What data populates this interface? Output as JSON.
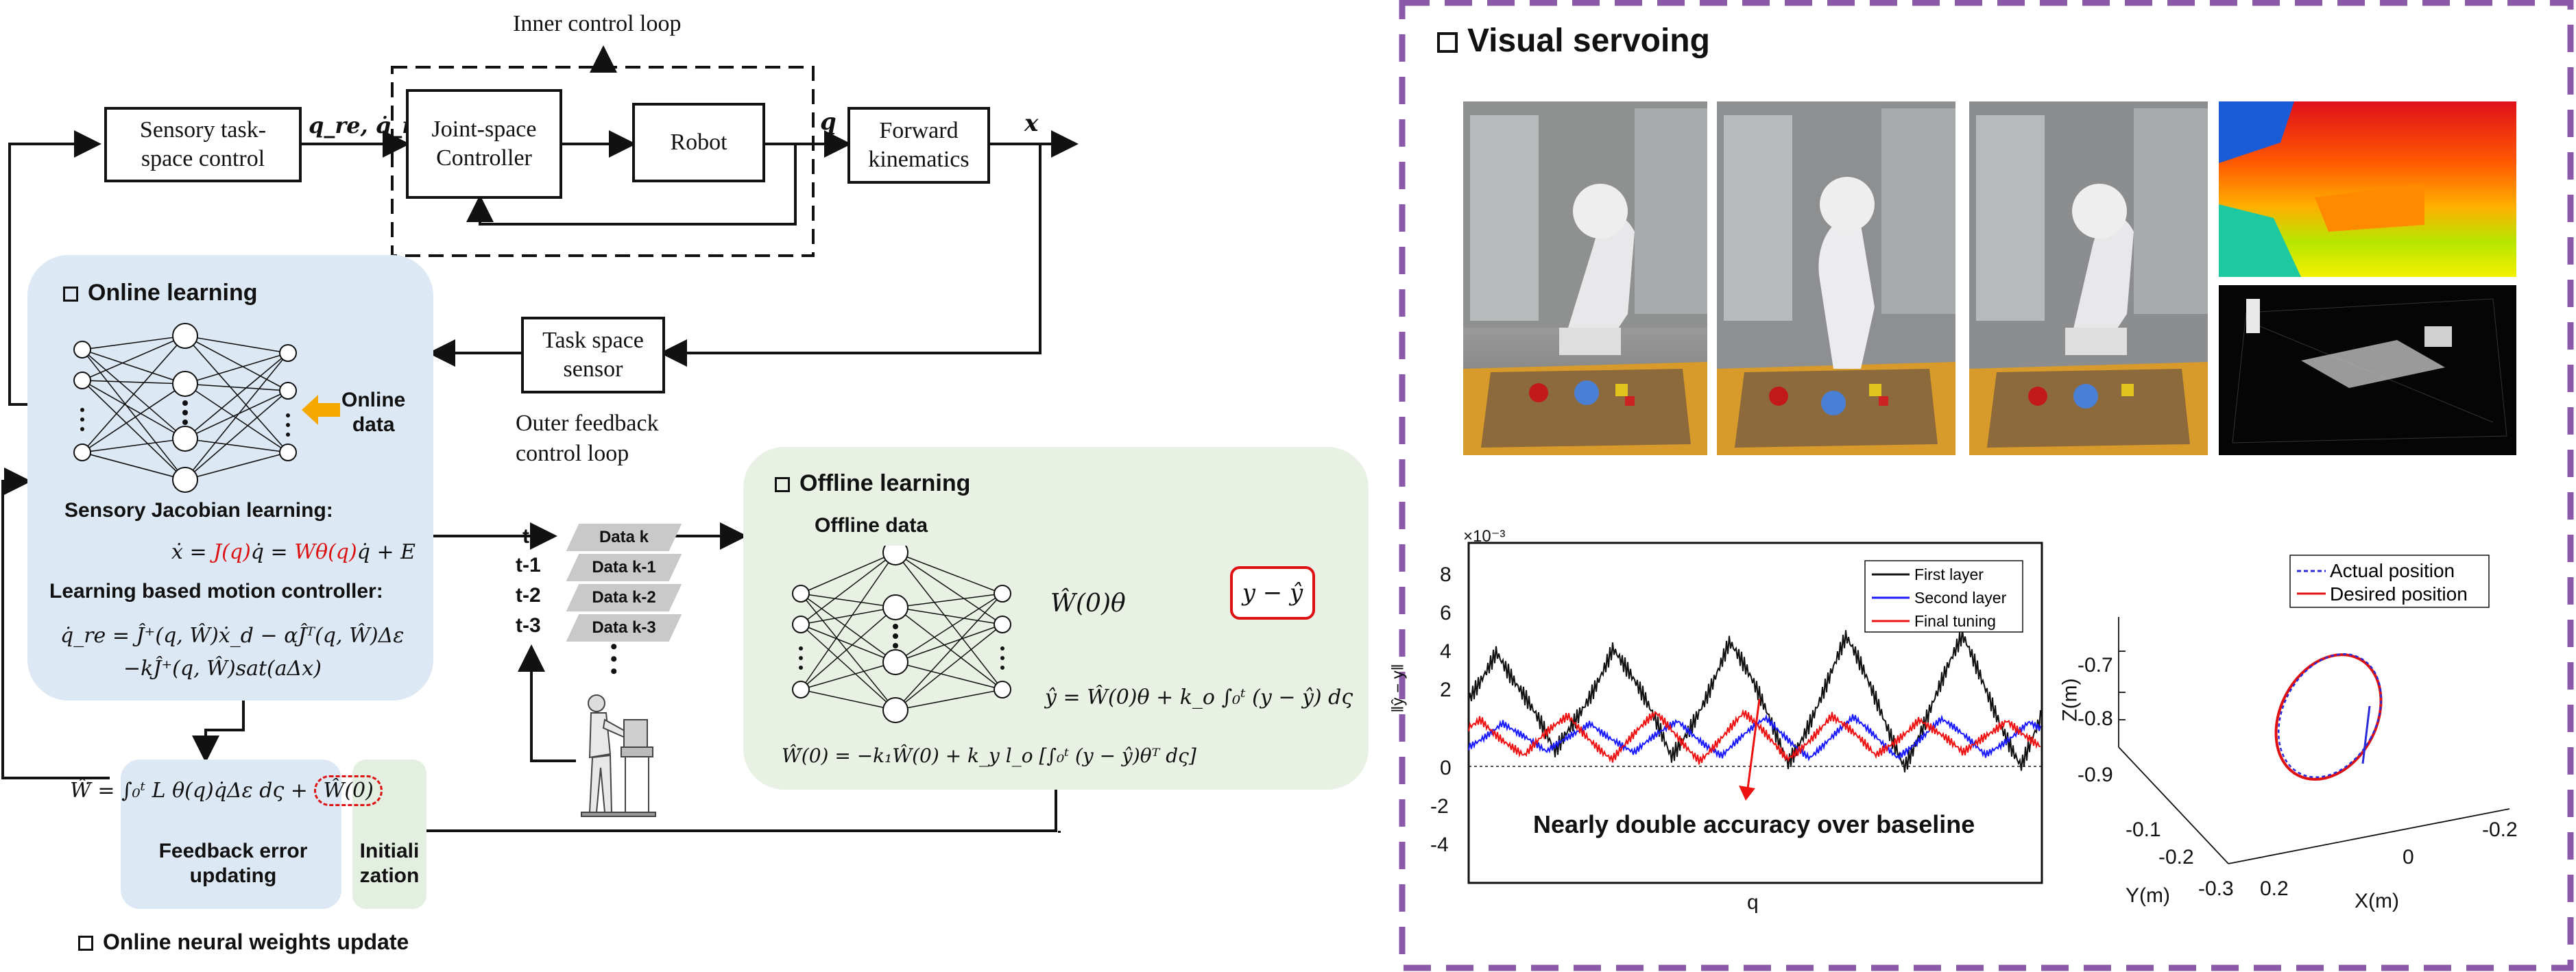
{
  "colors": {
    "online_panel": "#dde8f5",
    "offline_panel": "#e8f1e3",
    "init_panel": "#e3efe0",
    "highlight_red": "#dd1111",
    "arrow_orange": "#f5a800",
    "frame_purple": "#8a5aa8"
  },
  "control": {
    "inner_loop_label": "Inner control loop",
    "sensory_box": "Sensory task-\nspace control",
    "q_re_label": "q_re, q̇_re",
    "joint_box": "Joint-space\nController",
    "robot_box": "Robot",
    "q_label": "q",
    "fk_box": "Forward\nkinematics",
    "x_label": "x",
    "task_sensor_box": "Task space\nsensor",
    "outer_loop_label": "Outer feedback\ncontrol loop"
  },
  "online": {
    "title": "Online learning",
    "online_data_label": "Online\ndata",
    "jacobian_title": "Sensory Jacobian learning:",
    "jacobian_eq": {
      "lhs": "ẋ = ",
      "j": "J(q)",
      "mid": "q̇ = ",
      "w": "Wθ(q)",
      "rhs": "q̇ + E"
    },
    "motion_title": "Learning based motion controller:",
    "motion_eq_1": "q̇_re = Ĵ⁺(q, Ŵ)ẋ_d − αĴᵀ(q, Ŵ)Δε",
    "motion_eq_2": "−kĴ⁺(q, Ŵ)sat(aΔx)"
  },
  "update": {
    "eq_left": "Ŵ̇ = ∫₀ᵗ L θ(q)q̇Δε dς + ",
    "eq_right": "Ŵ(0)",
    "feedback_label": "Feedback error\nupdating",
    "init_label": "Initiali\nzation",
    "footer_title": "Online neural weights update"
  },
  "data_stack": {
    "times": [
      "t",
      "t-1",
      "t-2",
      "t-3"
    ],
    "items": [
      "Data k",
      "Data k-1",
      "Data k-2",
      "Data k-3"
    ],
    "ellipsis": "•\n•\n•"
  },
  "offline": {
    "title": "Offline learning",
    "data_label": "Offline data",
    "w_theta": "Ŵ(0)θ",
    "error_box": "y − ŷ",
    "y_hat_eq": "ŷ = Ŵ(0)θ + k_o ∫₀ᵗ (y − ŷ) dς",
    "w_dot_eq": "Ŵ̇(0) = −k₁Ŵ(0) + k_y l_o  [∫₀ᵗ (y − ŷ)θᵀ dς]"
  },
  "visual": {
    "title": "Visual servoing"
  },
  "error_chart": {
    "type": "line",
    "scale_label": "×10⁻³",
    "xlabel": "q",
    "ylabel": "‖ŷ − y‖",
    "ylim": [
      -5,
      10
    ],
    "yticks": [
      "8",
      "6",
      "4",
      "2",
      "0",
      "-2",
      "-4"
    ],
    "legend": [
      "First layer",
      "Second layer",
      "Final tuning"
    ],
    "series_colors": [
      "#111111",
      "#1a1aff",
      "#ee1111"
    ],
    "annotation": "Nearly double accuracy over baseline"
  },
  "traj_chart": {
    "type": "line",
    "legend": [
      "Actual position",
      "Desired position"
    ],
    "series_colors": [
      "#2a2ad8",
      "#e01010"
    ],
    "z_label": "Z(m)",
    "z_ticks": [
      "-0.7",
      "-0.8",
      "-0.9"
    ],
    "y_label": "Y(m)",
    "y_ticks": [
      "-0.1",
      "-0.2",
      "-0.3"
    ],
    "x_label": "X(m)",
    "x_ticks": [
      "0.2",
      "0",
      "-0.2"
    ]
  }
}
